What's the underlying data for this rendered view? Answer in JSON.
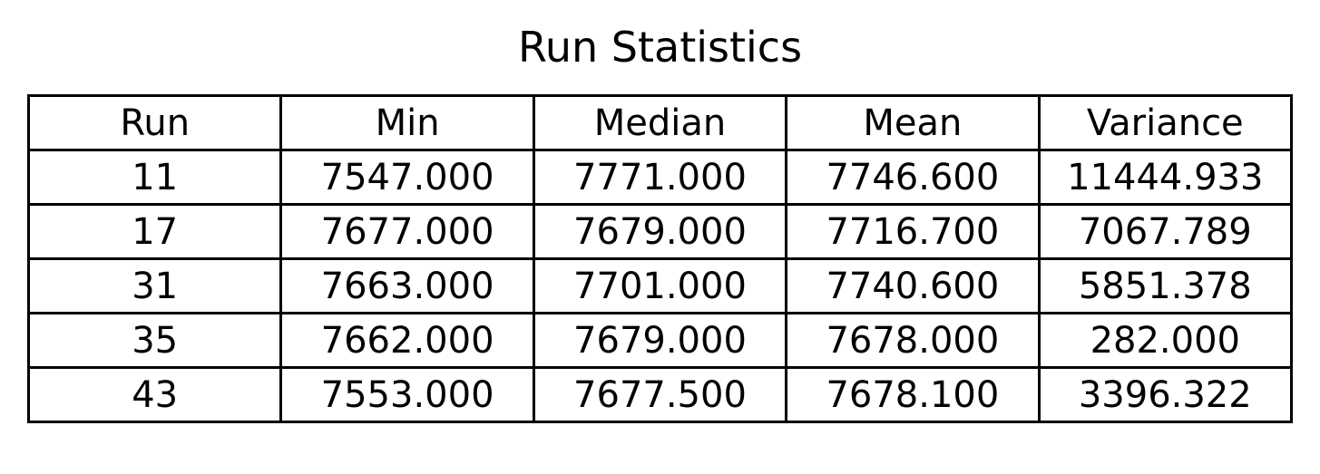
{
  "chart_data": {
    "type": "table",
    "title": "Run Statistics",
    "columns": [
      "Run",
      "Min",
      "Median",
      "Mean",
      "Variance"
    ],
    "rows": [
      [
        "11",
        "7547.000",
        "7771.000",
        "7746.600",
        "11444.933"
      ],
      [
        "17",
        "7677.000",
        "7679.000",
        "7716.700",
        "7067.789"
      ],
      [
        "31",
        "7663.000",
        "7701.000",
        "7740.600",
        "5851.378"
      ],
      [
        "35",
        "7662.000",
        "7679.000",
        "7678.000",
        "282.000"
      ],
      [
        "43",
        "7553.000",
        "7677.500",
        "7678.100",
        "3396.322"
      ]
    ]
  }
}
